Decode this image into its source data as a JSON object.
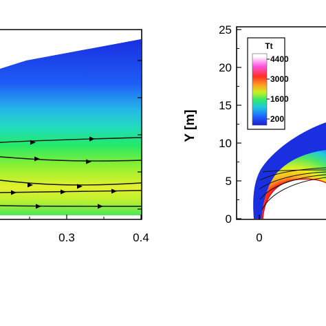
{
  "chart_data": [
    {
      "type": "heatmap",
      "panel": "left",
      "xlim": [
        0.2,
        0.4
      ],
      "x_ticks": [
        {
          "value": 0.3,
          "label": "0.3"
        },
        {
          "value": 0.4,
          "label": "0.4"
        }
      ],
      "streamlines": true,
      "colormap": [
        "#1a33e6",
        "#1f78ff",
        "#21d7c6",
        "#23e04a",
        "#b8f020",
        "#f0f030"
      ]
    },
    {
      "type": "heatmap",
      "panel": "right",
      "ylabel": "Y [m]",
      "ylim": [
        0,
        25
      ],
      "y_ticks": [
        {
          "value": 0,
          "label": "0"
        },
        {
          "value": 5,
          "label": "5"
        },
        {
          "value": 10,
          "label": "10"
        },
        {
          "value": 15,
          "label": "15"
        },
        {
          "value": 20,
          "label": "20"
        },
        {
          "value": 25,
          "label": "25"
        }
      ],
      "x_ticks": [
        {
          "value": 0,
          "label": "0"
        }
      ],
      "legend": {
        "title": "Tt",
        "position": "top-left",
        "levels": [
          {
            "value": 4400,
            "label": "4400"
          },
          {
            "value": 3000,
            "label": "3000"
          },
          {
            "value": 1600,
            "label": "1600"
          },
          {
            "value": 200,
            "label": "200"
          }
        ],
        "colors": [
          "#ffffff",
          "#ff40ff",
          "#ff2020",
          "#ff9020",
          "#f0f020",
          "#40f040",
          "#20d0d0",
          "#2060ff",
          "#1a20d0"
        ]
      }
    }
  ]
}
